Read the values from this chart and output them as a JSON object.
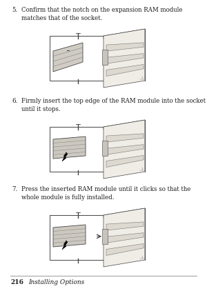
{
  "bg_color": "#ffffff",
  "text_color": "#1a1a1a",
  "step5_num": "5.",
  "step5_text": "Confirm that the notch on the expansion RAM module\nmatches that of the socket.",
  "step6_num": "6.",
  "step6_text": "Firmly insert the top edge of the RAM module into the socket\nuntil it stops.",
  "step7_num": "7.",
  "step7_text": "Press the inserted RAM module until it clicks so that the\nwhole module is fully installed.",
  "footer_page": "216",
  "footer_text": "Installing Options",
  "body_fontsize": 6.2,
  "footer_fontsize": 6.5,
  "num_fontsize": 6.2
}
